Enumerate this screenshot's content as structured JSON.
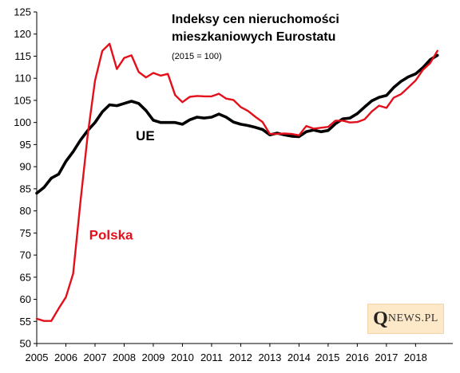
{
  "chart_data": {
    "type": "line",
    "title": "Indeksy cen nieruchomości\nmieszkaniowych Eurostatu",
    "subtitle": "(2015 = 100)",
    "xlabel": "",
    "ylabel": "",
    "xlim": [
      2005.0,
      2019.0
    ],
    "ylim": [
      50,
      125
    ],
    "y_ticks": [
      50,
      55,
      60,
      65,
      70,
      75,
      80,
      85,
      90,
      95,
      100,
      105,
      110,
      115,
      120,
      125
    ],
    "x_ticks": [
      "2005",
      "2006",
      "2007",
      "2008",
      "2009",
      "2010",
      "2011",
      "2012",
      "2013",
      "2014",
      "2015",
      "2016",
      "2017",
      "2018"
    ],
    "grid": false,
    "legend": "none",
    "series": [
      {
        "name": "UE",
        "color": "#000000",
        "label_at": [
          2008.4,
          96.0
        ],
        "x": [
          2005.0,
          2005.25,
          2005.5,
          2005.75,
          2006.0,
          2006.25,
          2006.5,
          2006.75,
          2007.0,
          2007.25,
          2007.5,
          2007.75,
          2008.0,
          2008.25,
          2008.5,
          2008.75,
          2009.0,
          2009.25,
          2009.5,
          2009.75,
          2010.0,
          2010.25,
          2010.5,
          2010.75,
          2011.0,
          2011.25,
          2011.5,
          2011.75,
          2012.0,
          2012.25,
          2012.5,
          2012.75,
          2013.0,
          2013.25,
          2013.5,
          2013.75,
          2014.0,
          2014.25,
          2014.5,
          2014.75,
          2015.0,
          2015.25,
          2015.5,
          2015.75,
          2016.0,
          2016.25,
          2016.5,
          2016.75,
          2017.0,
          2017.25,
          2017.5,
          2017.75,
          2018.0,
          2018.25,
          2018.5,
          2018.75
        ],
        "values": [
          84.0,
          85.3,
          87.4,
          88.3,
          91.2,
          93.4,
          96.0,
          98.2,
          100.0,
          102.4,
          104.0,
          103.8,
          104.3,
          104.8,
          104.3,
          102.7,
          100.5,
          100.0,
          100.0,
          100.0,
          99.6,
          100.6,
          101.2,
          101.0,
          101.2,
          101.9,
          101.2,
          100.1,
          99.6,
          99.3,
          98.9,
          98.4,
          97.2,
          97.6,
          97.2,
          96.9,
          96.8,
          97.9,
          98.3,
          97.9,
          98.2,
          99.7,
          100.8,
          101.0,
          102.0,
          103.5,
          104.9,
          105.7,
          106.1,
          107.9,
          109.3,
          110.3,
          111.0,
          112.4,
          114.2,
          115.2
        ]
      },
      {
        "name": "Polska",
        "color": "#e3101b",
        "label_at": [
          2006.8,
          73.5
        ],
        "x": [
          2005.0,
          2005.25,
          2005.5,
          2005.75,
          2006.0,
          2006.25,
          2006.5,
          2006.75,
          2007.0,
          2007.25,
          2007.5,
          2007.75,
          2008.0,
          2008.25,
          2008.5,
          2008.75,
          2009.0,
          2009.25,
          2009.5,
          2009.75,
          2010.0,
          2010.25,
          2010.5,
          2010.75,
          2011.0,
          2011.25,
          2011.5,
          2011.75,
          2012.0,
          2012.25,
          2012.5,
          2012.75,
          2013.0,
          2013.25,
          2013.5,
          2013.75,
          2014.0,
          2014.25,
          2014.5,
          2014.75,
          2015.0,
          2015.25,
          2015.5,
          2015.75,
          2016.0,
          2016.25,
          2016.5,
          2016.75,
          2017.0,
          2017.25,
          2017.5,
          2017.75,
          2018.0,
          2018.25,
          2018.5,
          2018.75
        ],
        "values": [
          55.6,
          55.1,
          55.1,
          57.9,
          60.5,
          65.8,
          82.0,
          97.3,
          109.5,
          116.2,
          117.8,
          112.1,
          114.6,
          115.2,
          111.4,
          110.2,
          111.2,
          110.6,
          111.0,
          106.2,
          104.6,
          105.8,
          106.0,
          105.9,
          105.9,
          106.5,
          105.4,
          105.1,
          103.5,
          102.6,
          101.3,
          100.1,
          97.4,
          97.4,
          97.5,
          97.4,
          97.1,
          99.2,
          98.6,
          98.8,
          99.0,
          100.4,
          100.4,
          100.0,
          100.1,
          100.7,
          102.5,
          103.8,
          103.3,
          105.6,
          106.4,
          107.9,
          109.5,
          111.9,
          113.4,
          116.2
        ]
      }
    ]
  },
  "logo": {
    "initial": "Q",
    "rest": "NEWS.PL"
  }
}
